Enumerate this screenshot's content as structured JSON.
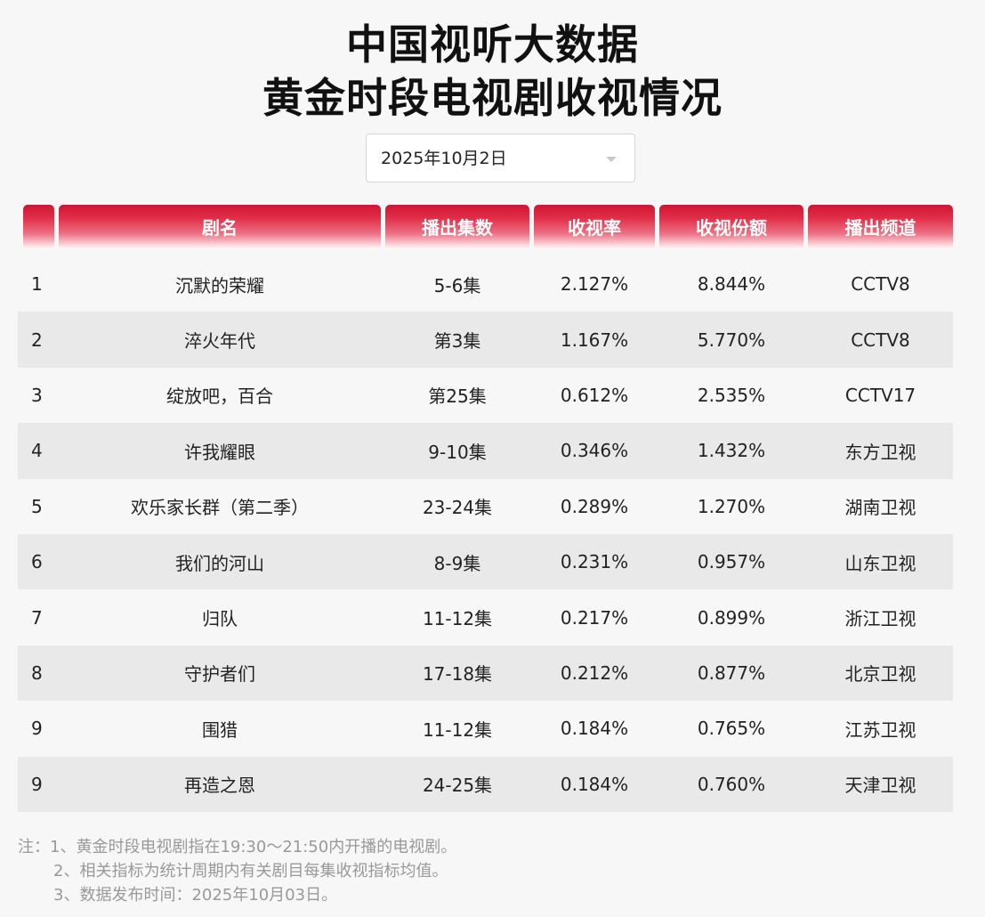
{
  "header": {
    "title_line1": "中国视听大数据",
    "title_line2": "黄金时段电视剧收视情况"
  },
  "date_picker": {
    "selected": "2025年10月2日",
    "icon": "chevron-down-icon"
  },
  "table": {
    "columns": [
      "",
      "剧名",
      "播出集数",
      "收视率",
      "收视份额",
      "播出频道"
    ],
    "rows": [
      {
        "rank": "1",
        "name": "沉默的荣耀",
        "episodes": "5-6集",
        "rating": "2.127%",
        "share": "8.844%",
        "channel": "CCTV8"
      },
      {
        "rank": "2",
        "name": "淬火年代",
        "episodes": "第3集",
        "rating": "1.167%",
        "share": "5.770%",
        "channel": "CCTV8"
      },
      {
        "rank": "3",
        "name": "绽放吧，百合",
        "episodes": "第25集",
        "rating": "0.612%",
        "share": "2.535%",
        "channel": "CCTV17"
      },
      {
        "rank": "4",
        "name": "许我耀眼",
        "episodes": "9-10集",
        "rating": "0.346%",
        "share": "1.432%",
        "channel": "东方卫视"
      },
      {
        "rank": "5",
        "name": "欢乐家长群（第二季）",
        "episodes": "23-24集",
        "rating": "0.289%",
        "share": "1.270%",
        "channel": "湖南卫视"
      },
      {
        "rank": "6",
        "name": "我们的河山",
        "episodes": "8-9集",
        "rating": "0.231%",
        "share": "0.957%",
        "channel": "山东卫视"
      },
      {
        "rank": "7",
        "name": "归队",
        "episodes": "11-12集",
        "rating": "0.217%",
        "share": "0.899%",
        "channel": "浙江卫视"
      },
      {
        "rank": "8",
        "name": "守护者们",
        "episodes": "17-18集",
        "rating": "0.212%",
        "share": "0.877%",
        "channel": "北京卫视"
      },
      {
        "rank": "9",
        "name": "围猎",
        "episodes": "11-12集",
        "rating": "0.184%",
        "share": "0.765%",
        "channel": "江苏卫视"
      },
      {
        "rank": "9",
        "name": "再造之恩",
        "episodes": "24-25集",
        "rating": "0.184%",
        "share": "0.760%",
        "channel": "天津卫视"
      }
    ]
  },
  "notes": [
    "注：1、黄金时段电视剧指在19:30～21:50内开播的电视剧。",
    "2、相关指标为统计周期内有关剧目每集收视指标均值。",
    "3、数据发布时间：2025年10月03日。"
  ],
  "colors": {
    "header_red": "#cf1632",
    "row_alt": "#e9e9e9",
    "background": "#f7f7f7"
  }
}
